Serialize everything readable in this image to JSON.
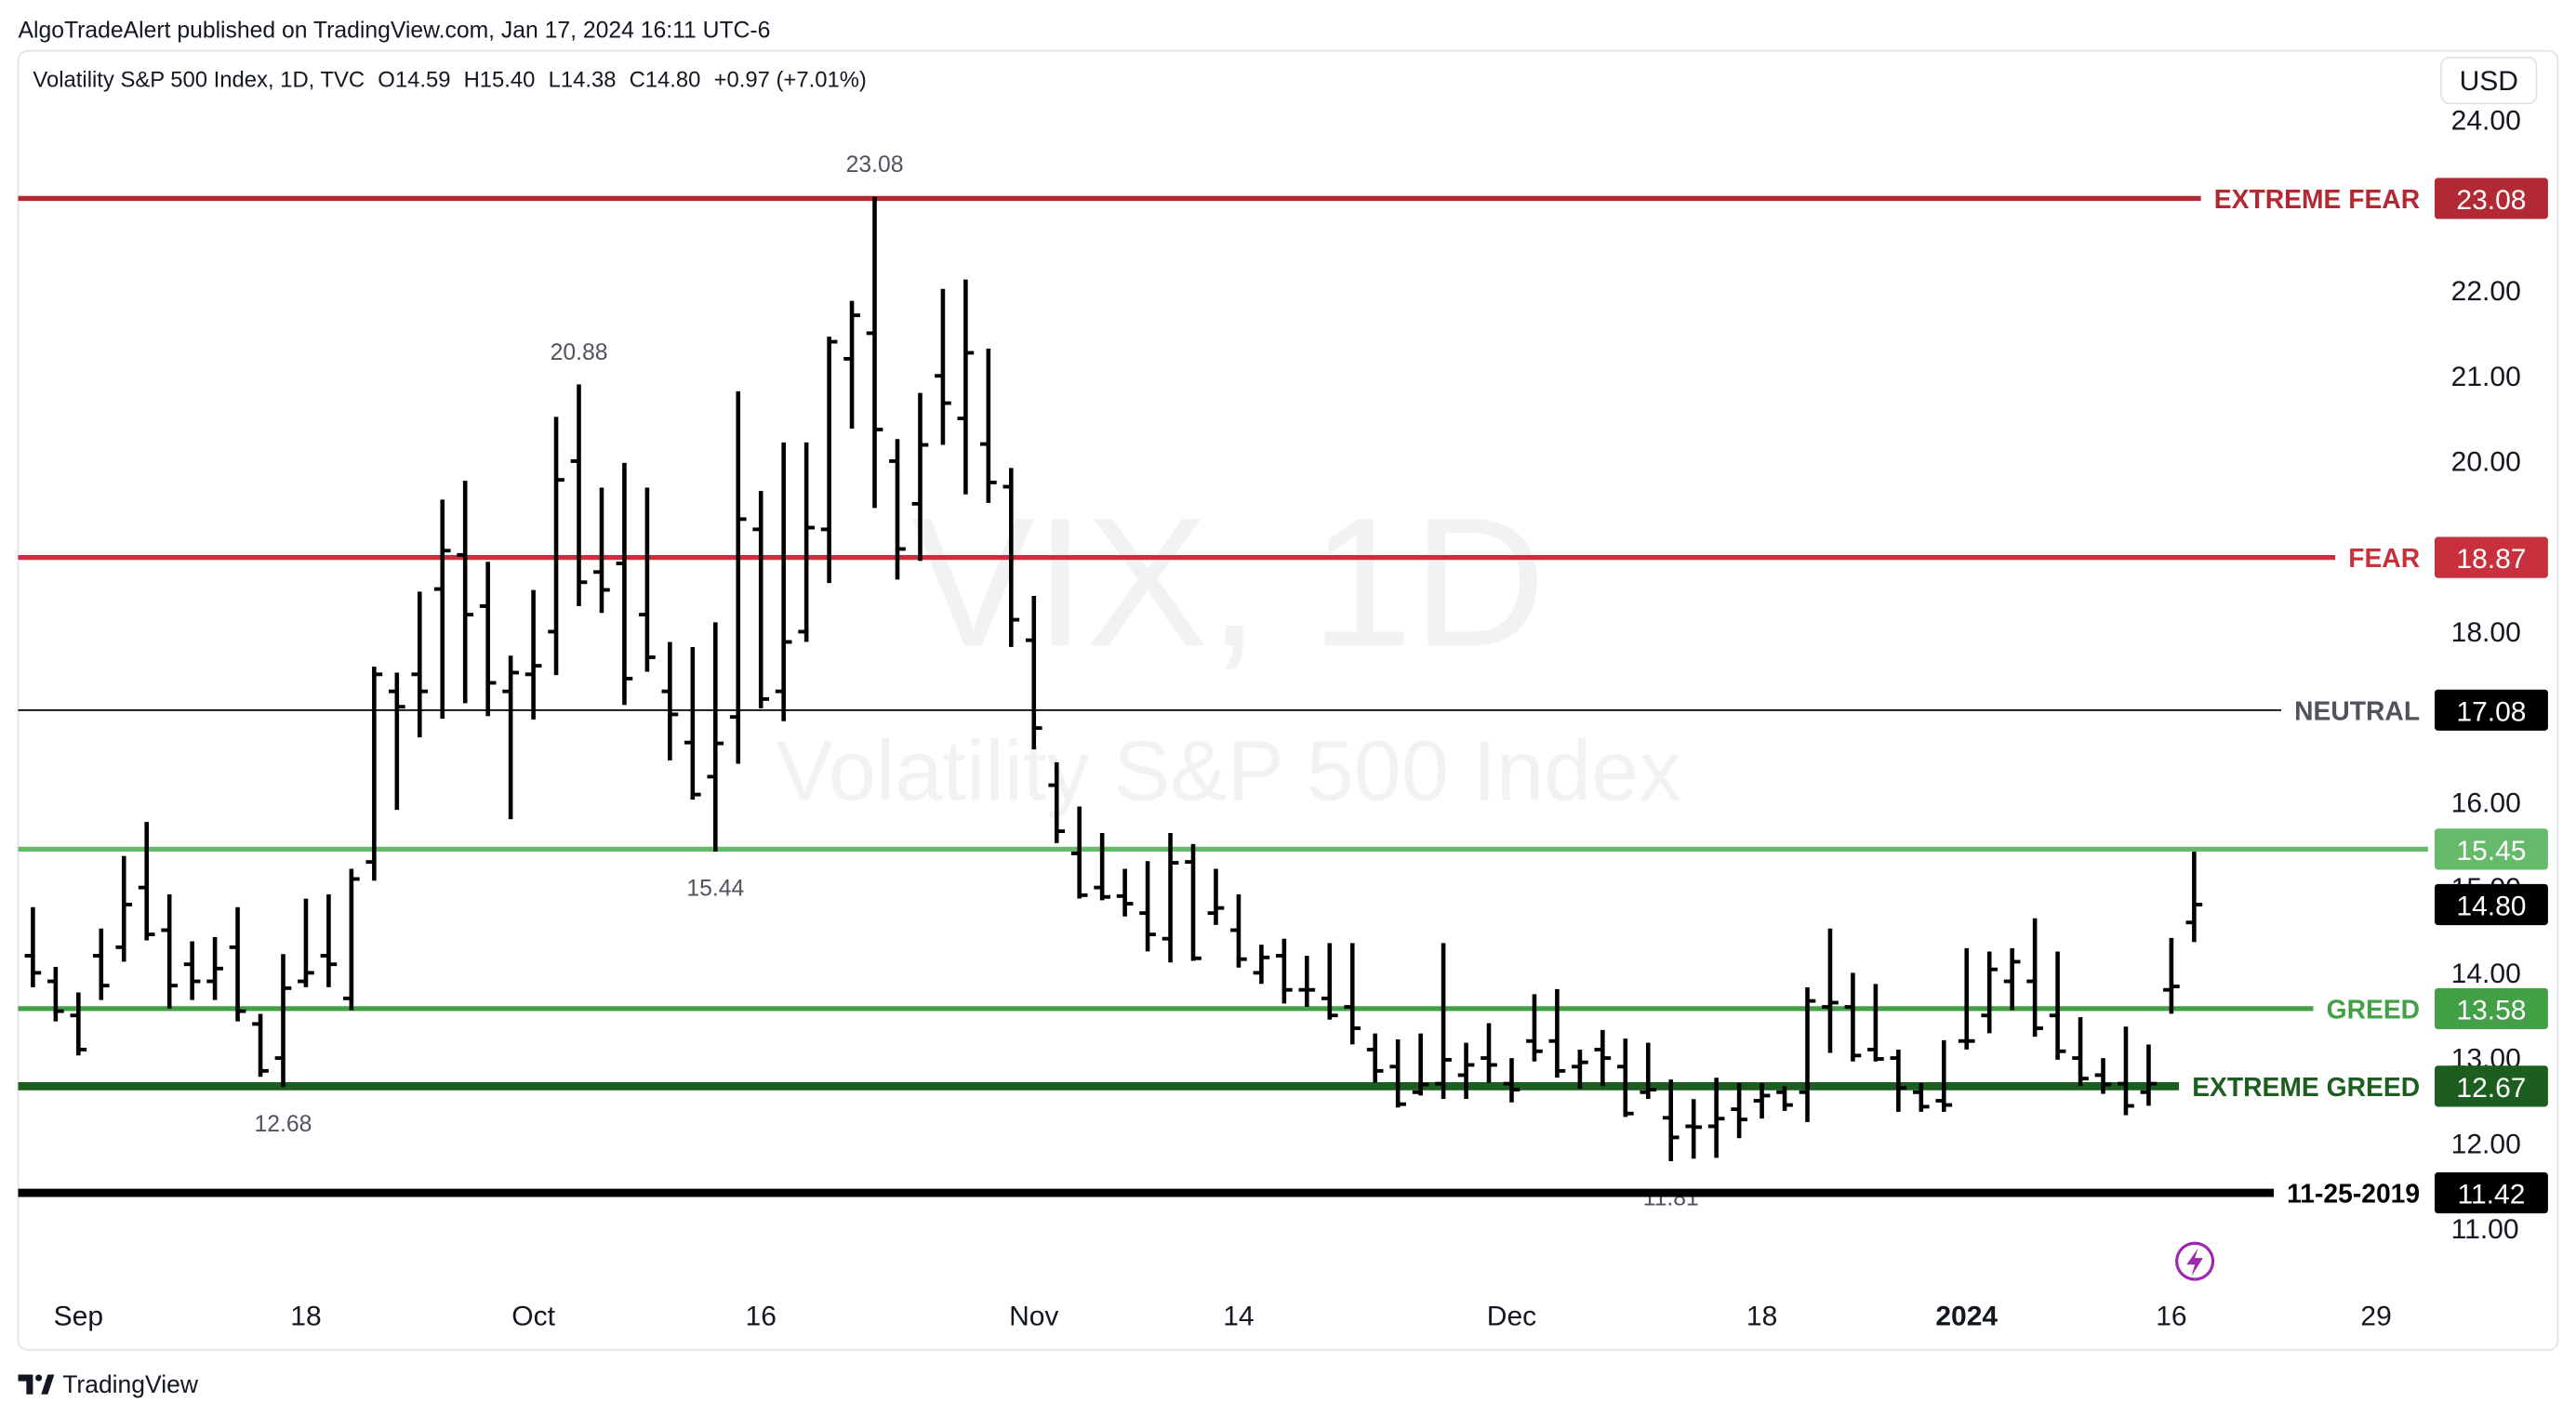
{
  "page": {
    "byline": "AlgoTradeAlert published on TradingView.com, Jan 17, 2024 16:11 UTC-6",
    "footer": "TradingView"
  },
  "chart_data": {
    "type": "ohlc",
    "symbol": "Volatility S&P 500 Index, 1D, TVC",
    "legend_values": [
      "O14.59",
      "H15.40",
      "L14.38",
      "C14.80",
      "+0.97 (+7.01%)"
    ],
    "currency": "USD",
    "watermark_title": "VIX, 1D",
    "watermark_subtitle": "Volatility S&P 500 Index",
    "color": "#000000",
    "categories": [
      null,
      null,
      "Sep",
      null,
      null,
      null,
      null,
      null,
      null,
      null,
      null,
      null,
      "18",
      null,
      null,
      null,
      null,
      null,
      null,
      null,
      null,
      null,
      "Oct",
      null,
      null,
      null,
      null,
      null,
      null,
      null,
      null,
      null,
      "16",
      null,
      null,
      null,
      null,
      null,
      null,
      null,
      null,
      null,
      null,
      null,
      "Nov",
      null,
      null,
      null,
      null,
      null,
      null,
      null,
      null,
      "14",
      null,
      null,
      null,
      null,
      null,
      null,
      null,
      null,
      null,
      null,
      null,
      "Dec",
      null,
      null,
      null,
      null,
      null,
      null,
      null,
      null,
      null,
      null,
      "18",
      null,
      null,
      null,
      null,
      null,
      null,
      null,
      null,
      "2024",
      null,
      null,
      null,
      null,
      null,
      null,
      null,
      null,
      "16",
      null,
      null,
      null,
      null,
      null,
      null,
      null,
      null,
      "29",
      null,
      null
    ],
    "open": [
      14.2,
      13.9,
      13.5,
      14.2,
      14.3,
      15.0,
      14.5,
      14.1,
      13.9,
      14.3,
      13.4,
      13.0,
      13.9,
      14.2,
      13.7,
      15.3,
      17.3,
      17.5,
      18.5,
      18.9,
      18.3,
      17.3,
      17.5,
      18.0,
      20.0,
      18.7,
      18.8,
      18.2,
      17.3,
      16.7,
      16.3,
      17.0,
      19.2,
      17.3,
      18.0,
      19.2,
      21.2,
      21.5,
      20.0,
      19.5,
      21.0,
      20.5,
      20.2,
      19.7,
      17.9,
      16.2,
      15.4,
      15.0,
      14.9,
      14.7,
      14.4,
      15.3,
      14.7,
      14.5,
      14.0,
      14.2,
      13.8,
      13.7,
      13.6,
      13.1,
      12.9,
      12.6,
      12.7,
      12.8,
      13.0,
      12.7,
      13.2,
      13.2,
      12.9,
      13.1,
      12.9,
      12.6,
      12.3,
      12.2,
      12.2,
      12.4,
      12.5,
      12.6,
      12.6,
      13.6,
      13.6,
      13.1,
      13.0,
      12.6,
      12.5,
      13.2,
      13.5,
      13.9,
      13.9,
      13.5,
      13.0,
      12.8,
      12.7,
      12.6,
      13.8,
      14.59,
      null,
      null,
      null,
      null,
      null,
      null,
      null,
      null,
      null,
      null
    ],
    "high": [
      14.75,
      14.05,
      13.75,
      14.5,
      15.35,
      15.75,
      14.9,
      14.35,
      14.4,
      14.75,
      13.5,
      14.2,
      14.85,
      14.9,
      15.2,
      17.57,
      17.5,
      18.45,
      19.53,
      19.75,
      18.8,
      17.7,
      18.47,
      20.5,
      20.88,
      19.67,
      19.96,
      19.67,
      17.86,
      17.8,
      18.09,
      20.8,
      19.63,
      20.2,
      20.2,
      21.44,
      21.86,
      23.08,
      20.24,
      20.78,
      22.0,
      22.11,
      21.3,
      19.9,
      18.4,
      16.45,
      15.93,
      15.62,
      15.2,
      15.29,
      15.62,
      15.49,
      15.2,
      14.9,
      14.31,
      14.38,
      14.18,
      14.33,
      14.33,
      13.27,
      13.2,
      13.27,
      14.33,
      13.16,
      13.39,
      12.98,
      13.73,
      13.79,
      13.08,
      13.31,
      13.21,
      13.16,
      12.73,
      12.5,
      12.75,
      12.69,
      12.69,
      12.65,
      13.81,
      14.5,
      13.98,
      13.85,
      13.08,
      12.69,
      13.19,
      14.27,
      14.23,
      14.27,
      14.62,
      14.23,
      13.46,
      12.98,
      13.35,
      13.14,
      14.39,
      15.4,
      null,
      null,
      null,
      null,
      null,
      null,
      null,
      null,
      null,
      null
    ],
    "low": [
      13.85,
      13.45,
      13.05,
      13.7,
      14.15,
      14.4,
      13.6,
      13.7,
      13.7,
      13.45,
      12.8,
      12.68,
      13.85,
      13.85,
      13.58,
      15.1,
      15.93,
      16.78,
      17.0,
      17.18,
      17.03,
      15.82,
      16.99,
      17.51,
      18.32,
      18.24,
      17.16,
      17.55,
      16.51,
      16.05,
      15.44,
      16.47,
      17.12,
      16.97,
      17.9,
      18.59,
      20.4,
      19.47,
      18.63,
      18.85,
      20.21,
      19.63,
      19.53,
      17.84,
      16.64,
      15.54,
      14.89,
      14.87,
      14.68,
      14.27,
      14.14,
      14.16,
      14.58,
      14.08,
      13.89,
      13.66,
      13.62,
      13.47,
      13.18,
      12.73,
      12.44,
      12.58,
      12.54,
      12.54,
      12.73,
      12.5,
      12.98,
      12.79,
      12.66,
      12.69,
      12.33,
      12.54,
      11.81,
      11.84,
      11.85,
      12.08,
      12.31,
      12.4,
      12.27,
      13.08,
      12.98,
      12.98,
      12.39,
      12.39,
      12.39,
      13.12,
      13.31,
      13.58,
      13.27,
      13.0,
      12.69,
      12.6,
      12.35,
      12.46,
      13.54,
      14.38,
      null,
      null,
      null,
      null,
      null,
      null,
      null,
      null,
      null,
      null
    ],
    "close": [
      14.0,
      13.55,
      13.1,
      13.85,
      14.8,
      14.45,
      13.85,
      13.9,
      14.05,
      13.55,
      12.85,
      13.82,
      14.0,
      14.1,
      15.1,
      17.5,
      17.12,
      17.3,
      18.95,
      18.2,
      17.4,
      17.52,
      17.6,
      19.78,
      18.58,
      18.49,
      17.45,
      17.7,
      17.03,
      16.09,
      16.69,
      19.32,
      17.21,
      17.88,
      19.22,
      21.4,
      21.71,
      20.37,
      18.97,
      20.19,
      20.68,
      21.27,
      19.75,
      18.14,
      16.87,
      15.66,
      14.91,
      14.89,
      14.81,
      14.45,
      15.29,
      14.17,
      14.76,
      14.16,
      14.18,
      13.8,
      13.8,
      13.5,
      13.35,
      12.85,
      12.46,
      12.69,
      12.98,
      12.92,
      12.92,
      12.63,
      13.08,
      12.85,
      12.95,
      13.0,
      12.35,
      12.63,
      12.07,
      12.19,
      12.29,
      12.28,
      12.56,
      12.45,
      13.67,
      13.65,
      13.03,
      12.99,
      12.65,
      12.43,
      12.45,
      13.2,
      14.04,
      14.13,
      13.35,
      13.08,
      12.76,
      12.69,
      12.44,
      12.7,
      13.84,
      14.8,
      null,
      null,
      null,
      null,
      null,
      null,
      null,
      null,
      null,
      null
    ],
    "ylim": [
      10.29,
      24.81
    ],
    "yticks": [
      {
        "value": 11,
        "label": "11.00"
      },
      {
        "value": 12,
        "label": "12.00"
      },
      {
        "value": 13,
        "label": "13.00"
      },
      {
        "value": 14,
        "label": "14.00"
      },
      {
        "value": 15,
        "label": "15.00"
      },
      {
        "value": 16,
        "label": "16.00"
      },
      {
        "value": 17,
        "label": "17.00"
      },
      {
        "value": 18,
        "label": "18.00"
      },
      {
        "value": 19,
        "label": "19.00"
      },
      {
        "value": 20,
        "label": "20.00"
      },
      {
        "value": 21,
        "label": "21.00"
      },
      {
        "value": 22,
        "label": "22.00"
      },
      {
        "value": 23,
        "label": "23.00"
      },
      {
        "value": 24,
        "label": "24.00"
      }
    ],
    "grid": false,
    "levels": [
      {
        "label": "EXTREME FEAR",
        "value": 23.08,
        "color": "#b22833",
        "width": 3
      },
      {
        "label": "FEAR",
        "value": 18.87,
        "color": "#c9303e",
        "width": 3
      },
      {
        "label": "NEUTRAL",
        "value": 17.08,
        "color": "#000000",
        "label_color": "#50535e",
        "width": 1
      },
      {
        "value": 15.45,
        "color": "#66bb6a",
        "width": 3
      },
      {
        "label": "GREED",
        "value": 13.58,
        "color": "#43a047",
        "width": 3
      },
      {
        "label": "EXTREME GREED",
        "value": 12.67,
        "color": "#1b5e20",
        "width": 5
      },
      {
        "label": "11-25-2019",
        "value": 11.42,
        "color": "#000000",
        "width": 5
      }
    ],
    "last_price": {
      "value": 14.8,
      "label": "14.80",
      "color": "#000000"
    }
  }
}
